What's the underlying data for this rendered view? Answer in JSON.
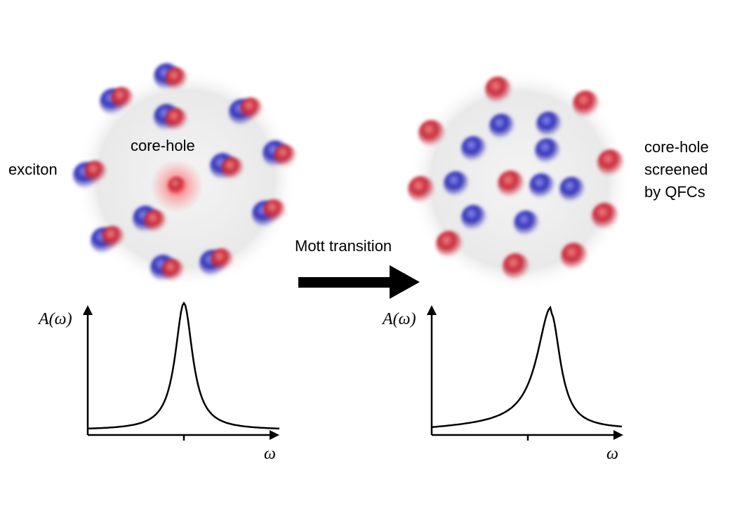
{
  "left_panel": {
    "exciton_label": "exciton",
    "core_hole_label": "core-hole",
    "y_axis_label": "A(ω)",
    "x_axis_label": "ω"
  },
  "transition": {
    "label": "Mott transition"
  },
  "right_panel": {
    "label_lines": [
      "core-hole",
      "screened",
      "by QFCs"
    ],
    "y_axis_label": "A(ω)",
    "x_axis_label": "ω"
  }
}
